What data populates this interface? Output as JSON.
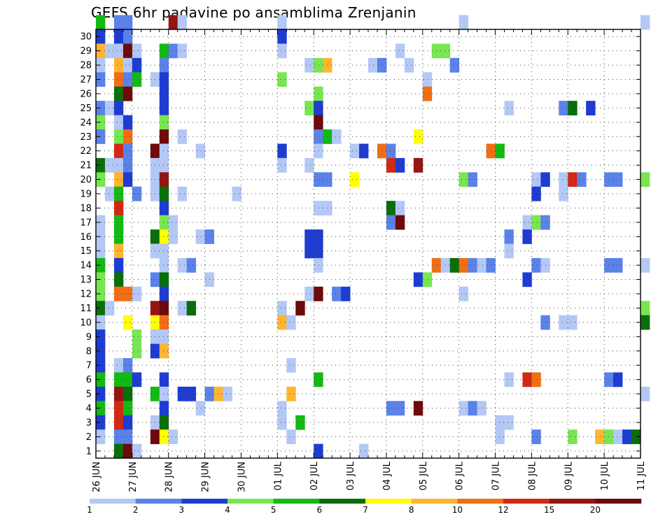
{
  "chart_data": {
    "type": "heatmap",
    "title": "GEFS 6hr padavine po ansamblima Zrenjanin",
    "xlabel": "",
    "ylabel": "",
    "x_ticks": [
      "26 JUN",
      "27 JUN",
      "28 JUN",
      "29 JUN",
      "30 JUN",
      "01 JUL",
      "02 JUL",
      "03 JUL",
      "04 JUL",
      "05 JUL",
      "06 JUL",
      "07 JUL",
      "08 JUL",
      "09 JUL",
      "10 JUL",
      "11 JUL"
    ],
    "y_ticks": [
      1,
      2,
      3,
      4,
      5,
      6,
      7,
      8,
      9,
      10,
      11,
      12,
      13,
      14,
      15,
      16,
      17,
      18,
      19,
      20,
      21,
      22,
      23,
      24,
      25,
      26,
      27,
      28,
      29,
      30
    ],
    "ylim": [
      0,
      30
    ],
    "grid": true,
    "steps_per_day": 4,
    "legend": {
      "position": "bottom",
      "labels": [
        "1",
        "2",
        "3",
        "4",
        "5",
        "6",
        "7",
        "8",
        "10",
        "12",
        "15",
        "20"
      ],
      "colors": [
        "#b4c8f5",
        "#5a82e8",
        "#1e3cd2",
        "#78e650",
        "#14b914",
        "#0a6e0a",
        "#ffff00",
        "#ffb432",
        "#f06e14",
        "#d22814",
        "#961414",
        "#6e0a0a"
      ]
    },
    "level_colors": [
      "#ffffff",
      "#b4c8f5",
      "#5a82e8",
      "#1e3cd2",
      "#78e650",
      "#14b914",
      "#0a6e0a",
      "#ffff00",
      "#ffb432",
      "#f06e14",
      "#d22814",
      "#961414",
      "#6e0a0a"
    ],
    "cells": [
      [
        30,
        0,
        5
      ],
      [
        30,
        2,
        2
      ],
      [
        30,
        3,
        2
      ],
      [
        30,
        8,
        11
      ],
      [
        30,
        9,
        1
      ],
      [
        30,
        20,
        1
      ],
      [
        30,
        40,
        1
      ],
      [
        30,
        60,
        1
      ],
      [
        29,
        0,
        3
      ],
      [
        29,
        2,
        3
      ],
      [
        29,
        3,
        2
      ],
      [
        29,
        20,
        3
      ],
      [
        28,
        0,
        8
      ],
      [
        28,
        1,
        1
      ],
      [
        28,
        2,
        1
      ],
      [
        28,
        3,
        12
      ],
      [
        28,
        4,
        1
      ],
      [
        28,
        7,
        5
      ],
      [
        28,
        8,
        2
      ],
      [
        28,
        9,
        1
      ],
      [
        28,
        20,
        1
      ],
      [
        28,
        33,
        1
      ],
      [
        28,
        37,
        4
      ],
      [
        28,
        38,
        4
      ],
      [
        27,
        0,
        1
      ],
      [
        27,
        2,
        8
      ],
      [
        27,
        3,
        1
      ],
      [
        27,
        4,
        3
      ],
      [
        27,
        7,
        2
      ],
      [
        27,
        23,
        1
      ],
      [
        27,
        24,
        4
      ],
      [
        27,
        25,
        8
      ],
      [
        27,
        30,
        1
      ],
      [
        27,
        31,
        2
      ],
      [
        27,
        34,
        1
      ],
      [
        27,
        39,
        2
      ],
      [
        26,
        0,
        2
      ],
      [
        26,
        2,
        9
      ],
      [
        26,
        3,
        2
      ],
      [
        26,
        4,
        5
      ],
      [
        26,
        6,
        1
      ],
      [
        26,
        7,
        3
      ],
      [
        26,
        20,
        4
      ],
      [
        26,
        36,
        1
      ],
      [
        25,
        2,
        6
      ],
      [
        25,
        3,
        12
      ],
      [
        25,
        7,
        3
      ],
      [
        25,
        24,
        4
      ],
      [
        25,
        36,
        9
      ],
      [
        24,
        0,
        2
      ],
      [
        24,
        1,
        1
      ],
      [
        24,
        2,
        3
      ],
      [
        24,
        7,
        3
      ],
      [
        24,
        23,
        4
      ],
      [
        24,
        24,
        3
      ],
      [
        24,
        45,
        1
      ],
      [
        24,
        51,
        2
      ],
      [
        24,
        52,
        6
      ],
      [
        24,
        54,
        3
      ],
      [
        23,
        0,
        4
      ],
      [
        23,
        2,
        1
      ],
      [
        23,
        3,
        3
      ],
      [
        23,
        7,
        4
      ],
      [
        23,
        24,
        12
      ],
      [
        22,
        0,
        2
      ],
      [
        22,
        2,
        4
      ],
      [
        22,
        3,
        9
      ],
      [
        22,
        7,
        12
      ],
      [
        22,
        9,
        1
      ],
      [
        22,
        24,
        2
      ],
      [
        22,
        25,
        5
      ],
      [
        22,
        26,
        1
      ],
      [
        22,
        35,
        7
      ],
      [
        21,
        2,
        10
      ],
      [
        21,
        3,
        2
      ],
      [
        21,
        6,
        12
      ],
      [
        21,
        7,
        1
      ],
      [
        21,
        11,
        1
      ],
      [
        21,
        20,
        3
      ],
      [
        21,
        24,
        1
      ],
      [
        21,
        28,
        1
      ],
      [
        21,
        29,
        3
      ],
      [
        21,
        31,
        9
      ],
      [
        21,
        32,
        2
      ],
      [
        21,
        43,
        9
      ],
      [
        21,
        44,
        5
      ],
      [
        20,
        0,
        6
      ],
      [
        20,
        1,
        1
      ],
      [
        20,
        2,
        1
      ],
      [
        20,
        3,
        2
      ],
      [
        20,
        6,
        1
      ],
      [
        20,
        7,
        1
      ],
      [
        20,
        20,
        1
      ],
      [
        20,
        23,
        1
      ],
      [
        20,
        32,
        10
      ],
      [
        20,
        33,
        3
      ],
      [
        20,
        35,
        11
      ],
      [
        19,
        0,
        4
      ],
      [
        19,
        2,
        8
      ],
      [
        19,
        3,
        3
      ],
      [
        19,
        6,
        1
      ],
      [
        19,
        7,
        11
      ],
      [
        19,
        24,
        2
      ],
      [
        19,
        25,
        2
      ],
      [
        19,
        28,
        7
      ],
      [
        19,
        40,
        4
      ],
      [
        19,
        41,
        2
      ],
      [
        19,
        48,
        1
      ],
      [
        19,
        49,
        3
      ],
      [
        19,
        51,
        1
      ],
      [
        19,
        52,
        10
      ],
      [
        19,
        53,
        2
      ],
      [
        19,
        56,
        2
      ],
      [
        19,
        57,
        2
      ],
      [
        19,
        60,
        4
      ],
      [
        18,
        1,
        1
      ],
      [
        18,
        2,
        5
      ],
      [
        18,
        4,
        2
      ],
      [
        18,
        6,
        1
      ],
      [
        18,
        7,
        6
      ],
      [
        18,
        9,
        1
      ],
      [
        18,
        15,
        1
      ],
      [
        18,
        48,
        3
      ],
      [
        18,
        51,
        1
      ],
      [
        17,
        2,
        10
      ],
      [
        17,
        7,
        3
      ],
      [
        17,
        24,
        1
      ],
      [
        17,
        25,
        1
      ],
      [
        17,
        32,
        6
      ],
      [
        17,
        33,
        1
      ],
      [
        16,
        0,
        1
      ],
      [
        16,
        2,
        5
      ],
      [
        16,
        7,
        4
      ],
      [
        16,
        8,
        1
      ],
      [
        16,
        32,
        2
      ],
      [
        16,
        33,
        12
      ],
      [
        16,
        47,
        1
      ],
      [
        16,
        48,
        4
      ],
      [
        16,
        49,
        2
      ],
      [
        15,
        0,
        1
      ],
      [
        15,
        2,
        5
      ],
      [
        15,
        6,
        6
      ],
      [
        15,
        7,
        7
      ],
      [
        15,
        8,
        1
      ],
      [
        15,
        11,
        1
      ],
      [
        15,
        12,
        2
      ],
      [
        15,
        23,
        3
      ],
      [
        15,
        24,
        3
      ],
      [
        15,
        45,
        2
      ],
      [
        15,
        47,
        3
      ],
      [
        14,
        0,
        1
      ],
      [
        14,
        2,
        8
      ],
      [
        14,
        6,
        1
      ],
      [
        14,
        7,
        1
      ],
      [
        14,
        23,
        3
      ],
      [
        14,
        24,
        3
      ],
      [
        14,
        45,
        1
      ],
      [
        13,
        0,
        5
      ],
      [
        13,
        2,
        3
      ],
      [
        13,
        7,
        1
      ],
      [
        13,
        9,
        1
      ],
      [
        13,
        10,
        2
      ],
      [
        13,
        24,
        1
      ],
      [
        13,
        37,
        9
      ],
      [
        13,
        38,
        1
      ],
      [
        13,
        39,
        6
      ],
      [
        13,
        40,
        9
      ],
      [
        13,
        41,
        2
      ],
      [
        13,
        42,
        1
      ],
      [
        13,
        43,
        2
      ],
      [
        13,
        48,
        2
      ],
      [
        13,
        49,
        1
      ],
      [
        13,
        56,
        2
      ],
      [
        13,
        57,
        2
      ],
      [
        13,
        60,
        1
      ],
      [
        12,
        0,
        4
      ],
      [
        12,
        2,
        6
      ],
      [
        12,
        6,
        2
      ],
      [
        12,
        7,
        6
      ],
      [
        12,
        12,
        1
      ],
      [
        12,
        35,
        3
      ],
      [
        12,
        36,
        4
      ],
      [
        12,
        47,
        3
      ],
      [
        11,
        0,
        4
      ],
      [
        11,
        2,
        9
      ],
      [
        11,
        3,
        9
      ],
      [
        11,
        4,
        1
      ],
      [
        11,
        7,
        3
      ],
      [
        11,
        23,
        1
      ],
      [
        11,
        24,
        12
      ],
      [
        11,
        26,
        2
      ],
      [
        11,
        27,
        3
      ],
      [
        11,
        40,
        1
      ],
      [
        10,
        0,
        6
      ],
      [
        10,
        1,
        1
      ],
      [
        10,
        6,
        11
      ],
      [
        10,
        7,
        12
      ],
      [
        10,
        9,
        1
      ],
      [
        10,
        10,
        6
      ],
      [
        10,
        20,
        1
      ],
      [
        10,
        22,
        12
      ],
      [
        10,
        60,
        4
      ],
      [
        9,
        0,
        1
      ],
      [
        9,
        3,
        7
      ],
      [
        9,
        6,
        7
      ],
      [
        9,
        7,
        9
      ],
      [
        9,
        20,
        8
      ],
      [
        9,
        21,
        1
      ],
      [
        9,
        49,
        2
      ],
      [
        9,
        51,
        1
      ],
      [
        9,
        52,
        1
      ],
      [
        9,
        60,
        6
      ],
      [
        8,
        0,
        3
      ],
      [
        8,
        4,
        4
      ],
      [
        8,
        6,
        1
      ],
      [
        8,
        7,
        1
      ],
      [
        7,
        0,
        3
      ],
      [
        7,
        4,
        4
      ],
      [
        7,
        6,
        3
      ],
      [
        7,
        7,
        8
      ],
      [
        6,
        0,
        3
      ],
      [
        6,
        2,
        1
      ],
      [
        6,
        3,
        2
      ],
      [
        6,
        21,
        1
      ],
      [
        5,
        0,
        5
      ],
      [
        5,
        2,
        5
      ],
      [
        5,
        3,
        5
      ],
      [
        5,
        4,
        3
      ],
      [
        5,
        7,
        3
      ],
      [
        5,
        24,
        5
      ],
      [
        5,
        45,
        1
      ],
      [
        5,
        47,
        10
      ],
      [
        5,
        48,
        9
      ],
      [
        5,
        56,
        2
      ],
      [
        5,
        57,
        3
      ],
      [
        4,
        0,
        3
      ],
      [
        4,
        2,
        11
      ],
      [
        4,
        3,
        6
      ],
      [
        4,
        6,
        5
      ],
      [
        4,
        7,
        1
      ],
      [
        4,
        9,
        3
      ],
      [
        4,
        10,
        3
      ],
      [
        4,
        12,
        2
      ],
      [
        4,
        13,
        8
      ],
      [
        4,
        14,
        1
      ],
      [
        4,
        21,
        8
      ],
      [
        4,
        60,
        1
      ],
      [
        3,
        0,
        5
      ],
      [
        3,
        2,
        10
      ],
      [
        3,
        3,
        5
      ],
      [
        3,
        7,
        3
      ],
      [
        3,
        11,
        1
      ],
      [
        3,
        20,
        1
      ],
      [
        3,
        32,
        2
      ],
      [
        3,
        33,
        2
      ],
      [
        3,
        35,
        12
      ],
      [
        3,
        40,
        1
      ],
      [
        3,
        41,
        2
      ],
      [
        3,
        42,
        1
      ],
      [
        2,
        0,
        3
      ],
      [
        2,
        2,
        10
      ],
      [
        2,
        3,
        3
      ],
      [
        2,
        6,
        1
      ],
      [
        2,
        7,
        6
      ],
      [
        2,
        20,
        1
      ],
      [
        2,
        22,
        5
      ],
      [
        2,
        44,
        1
      ],
      [
        2,
        45,
        1
      ],
      [
        1,
        0,
        1
      ],
      [
        1,
        2,
        2
      ],
      [
        1,
        3,
        2
      ],
      [
        1,
        6,
        12
      ],
      [
        1,
        7,
        7
      ],
      [
        1,
        8,
        1
      ],
      [
        1,
        21,
        1
      ],
      [
        1,
        44,
        1
      ],
      [
        1,
        48,
        2
      ],
      [
        1,
        52,
        4
      ],
      [
        1,
        55,
        8
      ],
      [
        1,
        56,
        4
      ],
      [
        1,
        57,
        1
      ],
      [
        1,
        58,
        3
      ],
      [
        1,
        59,
        6
      ],
      [
        0,
        2,
        6
      ],
      [
        0,
        3,
        12
      ],
      [
        0,
        4,
        1
      ],
      [
        0,
        24,
        3
      ],
      [
        0,
        29,
        1
      ]
    ]
  }
}
